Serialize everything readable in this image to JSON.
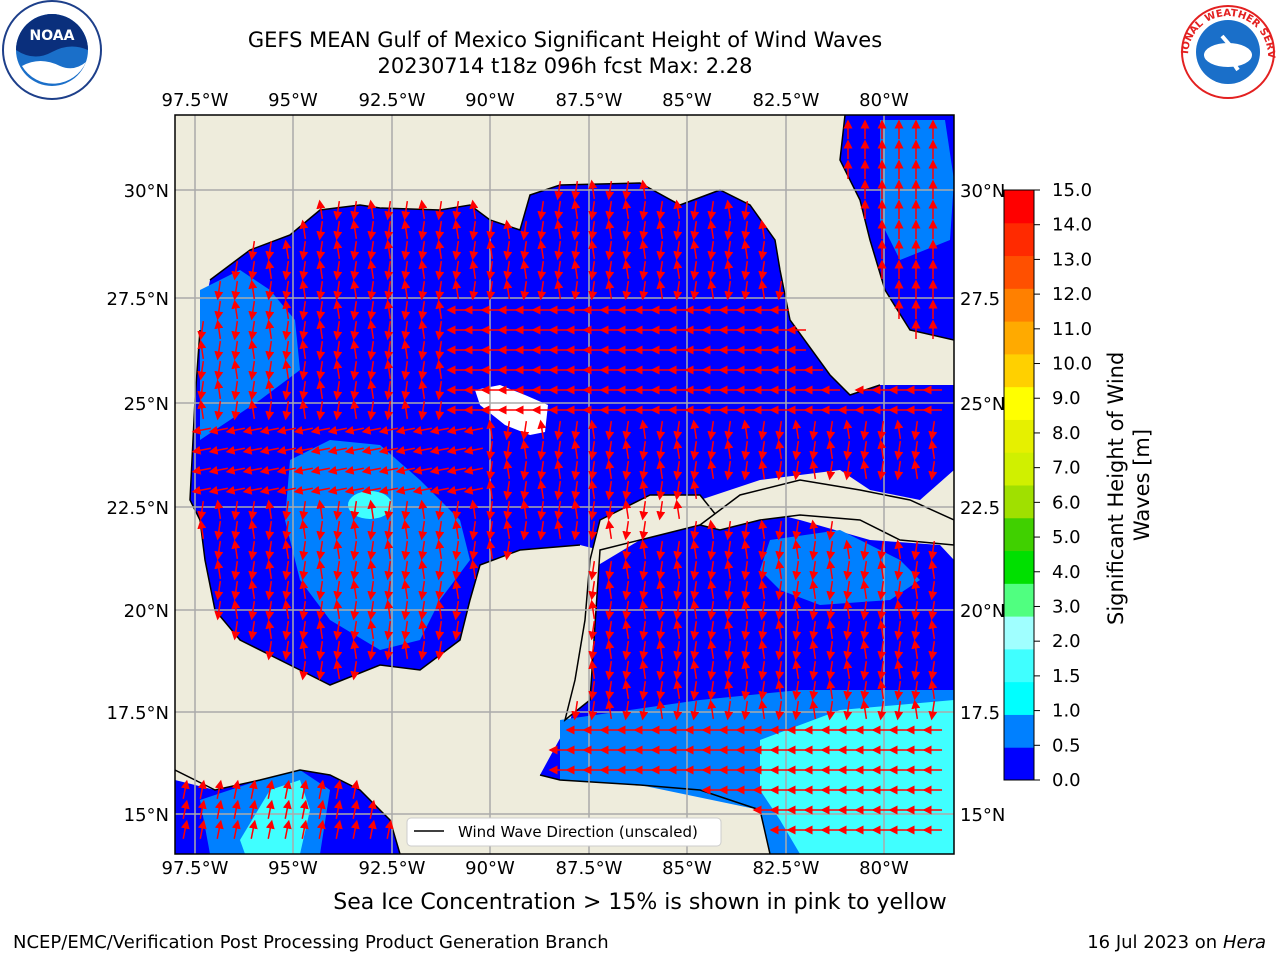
{
  "header": {
    "title_line1": "GEFS MEAN Gulf of Mexico Significant Height of Wind Waves",
    "title_line2": "20230714 t18z 096h fcst   Max: 2.28"
  },
  "logos": {
    "left": "NOAA",
    "right": "NATIONAL WEATHER SERVICE"
  },
  "map": {
    "lon_labels": [
      "97.5°W",
      "95°W",
      "92.5°W",
      "90°W",
      "87.5°W",
      "85°W",
      "82.5°W",
      "80°W"
    ],
    "lat_labels_left": [
      "30°N",
      "27.5°N",
      "25°N",
      "22.5°N",
      "20°N",
      "17.5°N",
      "15°N"
    ],
    "lat_labels_right": [
      "30°N",
      "27.5",
      "25°N",
      "22.5",
      "20°N",
      "17.5",
      "15°N"
    ],
    "legend_label": "Wind Wave Direction (unscaled)",
    "colors": {
      "ocean_low": "#0000ff",
      "ocean_mid": "#0080ff",
      "ocean_high": "#00ffff",
      "land": "#eeecdc",
      "arrow": "#ff0000",
      "grid": "#aaaaaa"
    }
  },
  "colorbar": {
    "label": "Significant Height of Wind Waves [m]",
    "ticks": [
      "15.0",
      "14.0",
      "13.0",
      "12.0",
      "11.0",
      "10.0",
      "9.0",
      "8.0",
      "7.0",
      "6.0",
      "5.0",
      "4.0",
      "3.0",
      "2.0",
      "1.5",
      "1.0",
      "0.5",
      "0.0"
    ],
    "colors": [
      "#0000ff",
      "#0080ff",
      "#00ffff",
      "#40ffff",
      "#a0ffff",
      "#50ff80",
      "#00e000",
      "#40d000",
      "#a0e000",
      "#d0f000",
      "#e6f000",
      "#ffff00",
      "#ffd000",
      "#ffaa00",
      "#ff8000",
      "#ff5000",
      "#ff2a00",
      "#ff0000"
    ]
  },
  "notes": {
    "ice_note": "Sea Ice Concentration > 15% is shown in pink to yellow",
    "footer_left": "NCEP/EMC/Verification Post Processing Product Generation Branch",
    "footer_date": "16 Jul 2023 on ",
    "footer_host": "Hera"
  }
}
